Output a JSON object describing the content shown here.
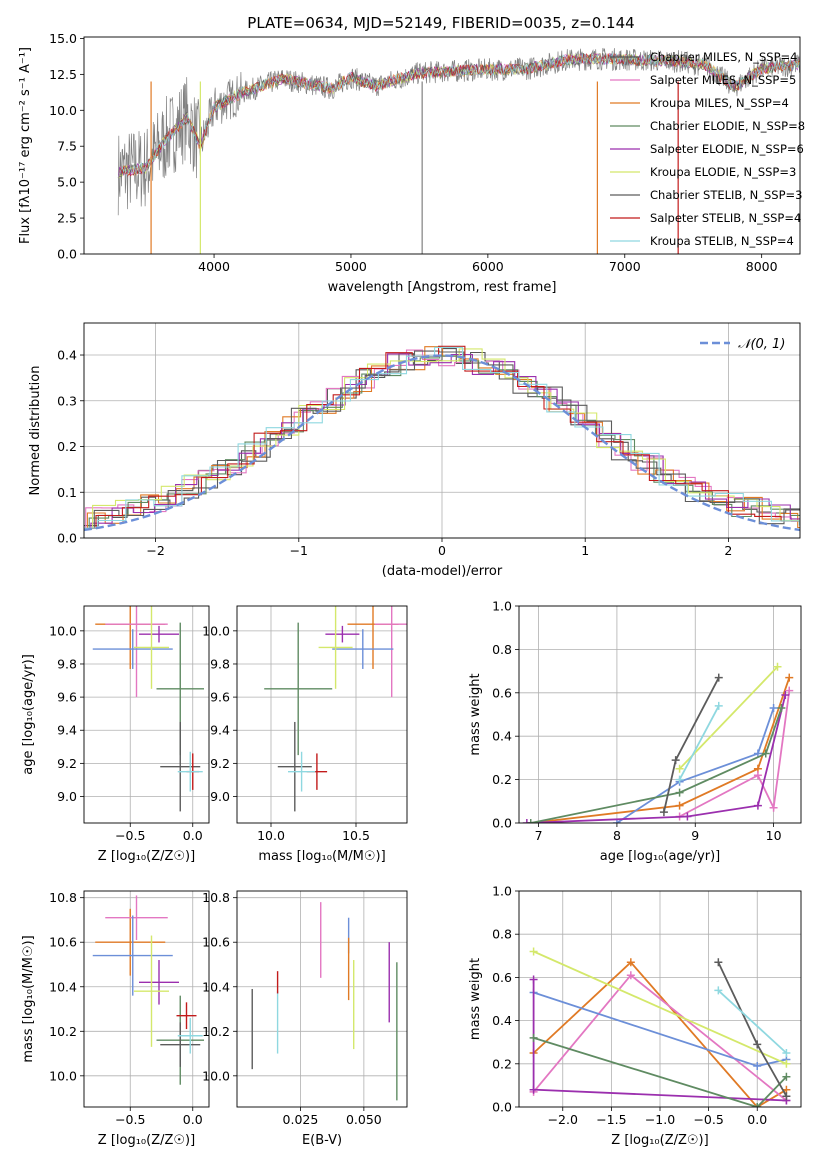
{
  "figure_title": "PLATE=0634, MJD=52149, FIBERID=0035, z=0.144",
  "colors": {
    "c1": "#555555",
    "c2": "#e377c2",
    "c3": "#e07a25",
    "c4": "#5f8b62",
    "c5": "#9b2fae",
    "c6": "#d4e86b",
    "c7": "#5c5c5c",
    "c8": "#c21b1b",
    "c9": "#8fd8e0",
    "c10": "#6c8fd8",
    "spectrum": "#808080"
  },
  "chart_data": [
    {
      "id": "spectrum",
      "type": "line",
      "title": "PLATE=0634, MJD=52149, FIBERID=0035, z=0.144",
      "xlabel": "wavelength [Angstrom, rest frame]",
      "ylabel": "Flux [fλ10⁻¹⁷ erg cm⁻² s⁻¹ A⁻¹]",
      "xlim": [
        3050,
        8280
      ],
      "ylim": [
        0,
        15.1
      ],
      "xticks": [
        "4000",
        "5000",
        "6000",
        "7000",
        "8000"
      ],
      "yticks": [
        "0.0",
        "2.5",
        "5.0",
        "7.5",
        "10.0",
        "12.5",
        "15.0"
      ],
      "legend_position": "upper-right",
      "series": [
        {
          "name": "Chabrier MILES, N_SSP=4",
          "color": "#555555"
        },
        {
          "name": "Salpeter MILES, N_SSP=5",
          "color": "#e377c2"
        },
        {
          "name": "Kroupa MILES, N_SSP=4",
          "color": "#e07a25"
        },
        {
          "name": "Chabrier ELODIE, N_SSP=8",
          "color": "#5f8b62"
        },
        {
          "name": "Salpeter ELODIE, N_SSP=6",
          "color": "#9b2fae"
        },
        {
          "name": "Kroupa ELODIE, N_SSP=3",
          "color": "#d4e86b"
        },
        {
          "name": "Chabrier STELIB, N_SSP=3",
          "color": "#5c5c5c"
        },
        {
          "name": "Salpeter STELIB, N_SSP=4",
          "color": "#c21b1b"
        },
        {
          "name": "Kroupa STELIB, N_SSP=4",
          "color": "#8fd8e0"
        }
      ],
      "spectrum_envelope": {
        "x": [
          3300,
          3500,
          3650,
          3800,
          3900,
          4000,
          4200,
          4500,
          4861,
          5000,
          5175,
          5500,
          5900,
          6300,
          6563,
          6800,
          7100,
          7400,
          7600,
          7800,
          8000,
          8280
        ],
        "y": [
          5.7,
          6.0,
          8.0,
          9.5,
          7.5,
          10.2,
          11.2,
          12.2,
          11.5,
          12.3,
          11.7,
          12.6,
          12.8,
          12.9,
          13.5,
          13.6,
          13.5,
          13.4,
          13.1,
          11.6,
          12.9,
          13.2
        ]
      }
    },
    {
      "id": "residuals",
      "type": "line",
      "xlabel": "(data-model)/error",
      "ylabel": "Normed distribution",
      "xlim": [
        -2.5,
        2.5
      ],
      "ylim": [
        0,
        0.47
      ],
      "xticks": [
        "−2",
        "−1",
        "0",
        "1",
        "2"
      ],
      "yticks": [
        "0.0",
        "0.1",
        "0.2",
        "0.3",
        "0.4"
      ],
      "legend_position": "upper-right",
      "series": [
        {
          "name": "𝒩(0, 1)",
          "color": "#6c8fd8",
          "style": "dashed",
          "function": "gaussian",
          "mu": 0,
          "sigma": 1
        }
      ]
    },
    {
      "id": "age-vs-Z",
      "type": "scatter",
      "xlabel": "Z [log₁₀(Z/Z☉)]",
      "ylabel": "age  [log₁₀(age/yr)]",
      "xlim": [
        -0.87,
        0.13
      ],
      "ylim": [
        8.84,
        10.15
      ],
      "xticks": [
        "−0.5",
        "0.0"
      ],
      "yticks": [
        "9.0",
        "9.2",
        "9.4",
        "9.6",
        "9.8",
        "10.0"
      ],
      "points": [
        {
          "color": "#e07a25",
          "x": -0.5,
          "y": 10.04,
          "xerr": 0.28,
          "yerr": 0.27
        },
        {
          "color": "#e377c2",
          "x": -0.45,
          "y": 10.04,
          "xerr": 0.25,
          "yerr": 0.44
        },
        {
          "color": "#6c8fd8",
          "x": -0.48,
          "y": 9.89,
          "xerr": 0.32,
          "yerr": 0.12
        },
        {
          "color": "#9b2fae",
          "x": -0.27,
          "y": 9.98,
          "xerr": 0.16,
          "yerr": 0.05
        },
        {
          "color": "#d4e86b",
          "x": -0.33,
          "y": 9.9,
          "xerr": 0.14,
          "yerr": 0.25
        },
        {
          "color": "#5f8b62",
          "x": -0.1,
          "y": 9.65,
          "xerr": 0.19,
          "yerr": 0.4
        },
        {
          "color": "#5c5c5c",
          "x": -0.1,
          "y": 9.18,
          "xerr": 0.16,
          "yerr": 0.27
        },
        {
          "color": "#c21b1b",
          "x": 0.0,
          "y": 9.15,
          "xerr": 0.05,
          "yerr": 0.11
        },
        {
          "color": "#8fd8e0",
          "x": -0.02,
          "y": 9.15,
          "xerr": 0.1,
          "yerr": 0.12
        }
      ]
    },
    {
      "id": "age-vs-mass",
      "type": "scatter",
      "xlabel": "mass [log₁₀(M/M☉)]",
      "ylabel": "",
      "xlim": [
        9.8,
        10.8
      ],
      "ylim": [
        8.84,
        10.15
      ],
      "xticks": [
        "10.0",
        "10.5"
      ],
      "yticks": [
        "9.0",
        "9.2",
        "9.4",
        "9.6",
        "9.8",
        "10.0"
      ],
      "points": [
        {
          "color": "#e07a25",
          "x": 10.6,
          "y": 10.04,
          "xerr": 0.15,
          "yerr": 0.27
        },
        {
          "color": "#e377c2",
          "x": 10.71,
          "y": 10.04,
          "xerr": 0.1,
          "yerr": 0.44
        },
        {
          "color": "#6c8fd8",
          "x": 10.54,
          "y": 9.89,
          "xerr": 0.18,
          "yerr": 0.12
        },
        {
          "color": "#9b2fae",
          "x": 10.42,
          "y": 9.98,
          "xerr": 0.1,
          "yerr": 0.05
        },
        {
          "color": "#d4e86b",
          "x": 10.38,
          "y": 9.9,
          "xerr": 0.1,
          "yerr": 0.25
        },
        {
          "color": "#5f8b62",
          "x": 10.16,
          "y": 9.65,
          "xerr": 0.2,
          "yerr": 0.4
        },
        {
          "color": "#5c5c5c",
          "x": 10.14,
          "y": 9.18,
          "xerr": 0.1,
          "yerr": 0.27
        },
        {
          "color": "#c21b1b",
          "x": 10.27,
          "y": 9.15,
          "xerr": 0.06,
          "yerr": 0.11
        },
        {
          "color": "#8fd8e0",
          "x": 10.18,
          "y": 9.15,
          "xerr": 0.08,
          "yerr": 0.12
        }
      ]
    },
    {
      "id": "massweight-vs-age",
      "type": "line",
      "xlabel": "age  [log₁₀(age/yr)]",
      "ylabel": "mass weight",
      "xlim": [
        6.75,
        10.35
      ],
      "ylim": [
        0,
        1
      ],
      "xticks": [
        "7",
        "8",
        "9",
        "10"
      ],
      "yticks": [
        "0.0",
        "0.2",
        "0.4",
        "0.6",
        "0.8",
        "1.0"
      ],
      "series": [
        {
          "color": "#e07a25",
          "x": [
            6.9,
            8.8,
            9.8,
            10.2
          ],
          "y": [
            0.0,
            0.08,
            0.25,
            0.67
          ]
        },
        {
          "color": "#e377c2",
          "x": [
            8.8,
            9.8,
            10.0,
            10.2
          ],
          "y": [
            0.03,
            0.22,
            0.07,
            0.61
          ]
        },
        {
          "color": "#6c8fd8",
          "x": [
            8.0,
            8.8,
            9.8,
            10.0
          ],
          "y": [
            0.0,
            0.19,
            0.32,
            0.53
          ]
        },
        {
          "color": "#9b2fae",
          "x": [
            6.85,
            8.9,
            9.8,
            10.15
          ],
          "y": [
            0.0,
            0.03,
            0.08,
            0.59
          ]
        },
        {
          "color": "#d4e86b",
          "x": [
            8.8,
            10.05
          ],
          "y": [
            0.25,
            0.72
          ]
        },
        {
          "color": "#5f8b62",
          "x": [
            6.9,
            8.8,
            9.9,
            10.1
          ],
          "y": [
            0.0,
            0.14,
            0.32,
            0.53
          ]
        },
        {
          "color": "#5c5c5c",
          "x": [
            8.6,
            8.75,
            9.3
          ],
          "y": [
            0.05,
            0.29,
            0.67
          ]
        },
        {
          "color": "#8fd8e0",
          "x": [
            8.8,
            9.3
          ],
          "y": [
            0.2,
            0.54
          ]
        }
      ]
    },
    {
      "id": "mass-vs-Z",
      "type": "scatter",
      "xlabel": "Z [log₁₀(Z/Z☉)]",
      "ylabel": "mass [log₁₀(M/M☉)]",
      "xlim": [
        -0.87,
        0.13
      ],
      "ylim": [
        9.86,
        10.83
      ],
      "xticks": [
        "−0.5",
        "0.0"
      ],
      "yticks": [
        "10.0",
        "10.2",
        "10.4",
        "10.6",
        "10.8"
      ],
      "points": [
        {
          "color": "#e07a25",
          "x": -0.5,
          "y": 10.6,
          "xerr": 0.28,
          "yerr": 0.15
        },
        {
          "color": "#e377c2",
          "x": -0.45,
          "y": 10.71,
          "xerr": 0.25,
          "yerr": 0.1
        },
        {
          "color": "#6c8fd8",
          "x": -0.48,
          "y": 10.54,
          "xerr": 0.32,
          "yerr": 0.18
        },
        {
          "color": "#9b2fae",
          "x": -0.27,
          "y": 10.42,
          "xerr": 0.16,
          "yerr": 0.1
        },
        {
          "color": "#d4e86b",
          "x": -0.33,
          "y": 10.38,
          "xerr": 0.14,
          "yerr": 0.25
        },
        {
          "color": "#5f8b62",
          "x": -0.1,
          "y": 10.16,
          "xerr": 0.19,
          "yerr": 0.2
        },
        {
          "color": "#5c5c5c",
          "x": -0.1,
          "y": 10.14,
          "xerr": 0.16,
          "yerr": 0.1
        },
        {
          "color": "#c21b1b",
          "x": -0.05,
          "y": 10.27,
          "xerr": 0.08,
          "yerr": 0.06
        },
        {
          "color": "#8fd8e0",
          "x": -0.02,
          "y": 10.18,
          "xerr": 0.1,
          "yerr": 0.08
        }
      ]
    },
    {
      "id": "mass-vs-EBV",
      "type": "scatter",
      "xlabel": "E(B-V)",
      "ylabel": "",
      "xlim": [
        0.0,
        0.067
      ],
      "ylim": [
        9.86,
        10.83
      ],
      "xticks": [
        "0.025",
        "0.050"
      ],
      "yticks": [
        "10.0",
        "10.2",
        "10.4",
        "10.6",
        "10.8"
      ],
      "points": [
        {
          "color": "#5c5c5c",
          "x": 0.006,
          "y": 10.21,
          "yerr": 0.18
        },
        {
          "color": "#8fd8e0",
          "x": 0.016,
          "y": 10.24,
          "yerr": 0.14
        },
        {
          "color": "#c21b1b",
          "x": 0.016,
          "y": 10.42,
          "yerr": 0.05
        },
        {
          "color": "#e377c2",
          "x": 0.033,
          "y": 10.61,
          "yerr": 0.17
        },
        {
          "color": "#6c8fd8",
          "x": 0.044,
          "y": 10.63,
          "yerr": 0.08
        },
        {
          "color": "#e07a25",
          "x": 0.044,
          "y": 10.48,
          "yerr": 0.14
        },
        {
          "color": "#d4e86b",
          "x": 0.046,
          "y": 10.32,
          "yerr": 0.2
        },
        {
          "color": "#9b2fae",
          "x": 0.06,
          "y": 10.42,
          "yerr": 0.18
        },
        {
          "color": "#5f8b62",
          "x": 0.063,
          "y": 10.2,
          "yerr": 0.31
        }
      ]
    },
    {
      "id": "massweight-vs-Z",
      "type": "line",
      "xlabel": "Z [log₁₀(Z/Z☉)]",
      "ylabel": "mass weight",
      "xlim": [
        -2.45,
        0.45
      ],
      "ylim": [
        0,
        1
      ],
      "xticks": [
        "−2.0",
        "−1.5",
        "−1.0",
        "−0.5",
        "0.0"
      ],
      "yticks": [
        "0.0",
        "0.2",
        "0.4",
        "0.6",
        "0.8",
        "1.0"
      ],
      "series": [
        {
          "color": "#e07a25",
          "x": [
            -2.3,
            -1.3,
            0.0,
            0.3
          ],
          "y": [
            0.25,
            0.67,
            0.0,
            0.08
          ]
        },
        {
          "color": "#e377c2",
          "x": [
            -2.3,
            -1.3,
            0.3
          ],
          "y": [
            0.07,
            0.61,
            0.03
          ]
        },
        {
          "color": "#6c8fd8",
          "x": [
            -2.3,
            0.0,
            0.3
          ],
          "y": [
            0.53,
            0.19,
            0.22
          ]
        },
        {
          "color": "#9b2fae",
          "x": [
            -2.3,
            -2.3,
            0.3
          ],
          "y": [
            0.59,
            0.08,
            0.03
          ]
        },
        {
          "color": "#d4e86b",
          "x": [
            -2.3,
            0.3
          ],
          "y": [
            0.72,
            0.2
          ]
        },
        {
          "color": "#5f8b62",
          "x": [
            -2.3,
            0.0,
            0.3
          ],
          "y": [
            0.32,
            0.0,
            0.14
          ]
        },
        {
          "color": "#5c5c5c",
          "x": [
            -0.4,
            0.0,
            0.3
          ],
          "y": [
            0.67,
            0.29,
            0.05
          ]
        },
        {
          "color": "#8fd8e0",
          "x": [
            -0.4,
            0.3
          ],
          "y": [
            0.54,
            0.25
          ]
        }
      ]
    }
  ]
}
